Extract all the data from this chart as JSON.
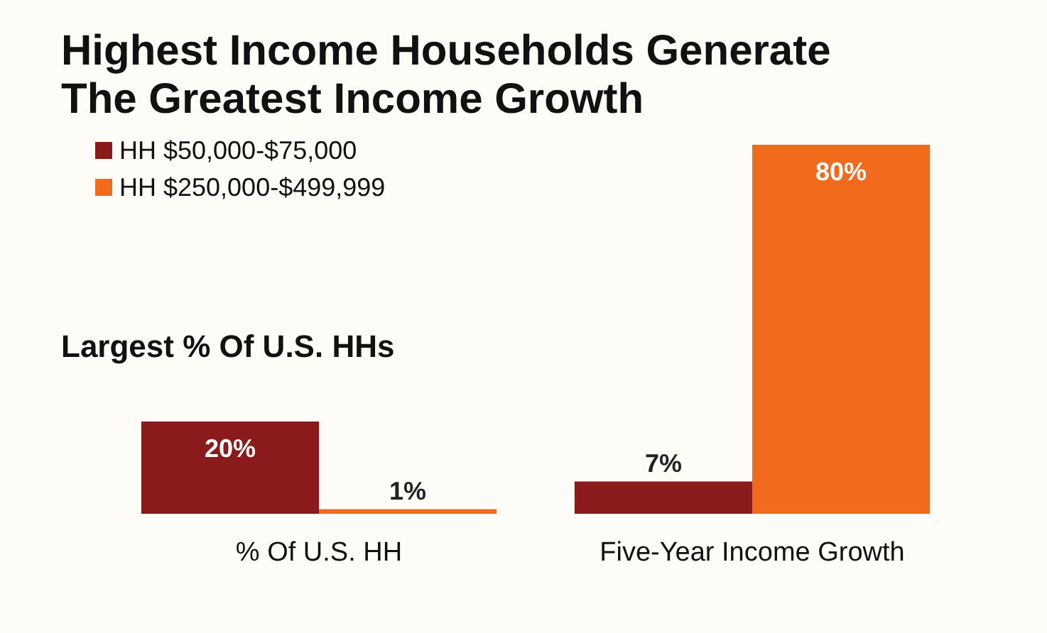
{
  "chart_data": {
    "type": "bar",
    "title": "Highest Income Households Generate\nThe Greatest Income Growth",
    "subtitle": "Largest % Of U.S. HHs",
    "categories": [
      "% Of U.S. HH",
      "Five-Year Income Growth"
    ],
    "series": [
      {
        "name": "HH $50,000-$75,000",
        "color": "#8b1a1a",
        "values": [
          20,
          7
        ],
        "value_labels": [
          "20%",
          "7%"
        ]
      },
      {
        "name": "HH $250,000-$499,999",
        "color": "#f26a1b",
        "values": [
          1,
          80
        ],
        "value_labels": [
          "1%",
          "80%"
        ]
      }
    ],
    "legend": "top left"
  }
}
